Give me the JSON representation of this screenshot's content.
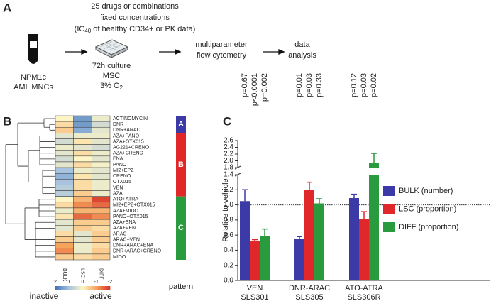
{
  "panel_a": {
    "label": "A",
    "heading": [
      "25 drugs or combinations",
      "fixed concentrations"
    ],
    "heading_line3": {
      "before": "(IC",
      "sub": "40",
      "after": " of healthy CD34+ or PK data)"
    },
    "sample": [
      "NPM1c",
      "AML MNCs"
    ],
    "culture": [
      "72h culture",
      "MSC"
    ],
    "oxygen": {
      "before": "3% O",
      "sub": "2"
    },
    "flow": [
      "multiparameter",
      "flow cytometry"
    ],
    "analysis": [
      "data",
      "analysis"
    ]
  },
  "chart_data": [
    {
      "type": "heatmap",
      "panel_label": "B",
      "rows": [
        "ACTINOMYCIN",
        "DNR",
        "DNR+ARAC",
        "AZA+PANO",
        "AZA+OTX015",
        "AG221+CRENO",
        "AZA+CRENO",
        "ENA",
        "PANO",
        "MI2+EPZ",
        "CRENO",
        "OTX015",
        "VEN",
        "AZA",
        "ATO+ATRA",
        "MI2+EPZ+OTX015",
        "AZA+MIDO",
        "PANO+OTX015",
        "AZA+ENA",
        "AZA+VEN",
        "ARAC",
        "ARAC+VEN",
        "DNR+ARAC+ENA",
        "DNR+ARAC+CRENO",
        "MIDO"
      ],
      "columns": [
        "BULK",
        "LSC",
        "DIFF"
      ],
      "values": [
        [
          0,
          1.5,
          0.2
        ],
        [
          -0.3,
          1.5,
          0.5
        ],
        [
          -0.5,
          1.3,
          0.3
        ],
        [
          0.3,
          0.2,
          0.2
        ],
        [
          0.5,
          -0.2,
          0.3
        ],
        [
          0.2,
          0.3,
          0.5
        ],
        [
          0.3,
          -0.3,
          0.2
        ],
        [
          0.5,
          0,
          0.3
        ],
        [
          0.3,
          -0.3,
          0.1
        ],
        [
          1,
          0.2,
          0.3
        ],
        [
          1.2,
          -0.2,
          0.3
        ],
        [
          1,
          -0.3,
          0.2
        ],
        [
          0.8,
          -0.3,
          0.2
        ],
        [
          0.8,
          -0.5,
          0.2
        ],
        [
          0,
          -0.8,
          -1.8
        ],
        [
          -0.3,
          -1.2,
          -1.5
        ],
        [
          0.2,
          -0.8,
          -0.8
        ],
        [
          -0.2,
          -1.5,
          -1.2
        ],
        [
          0.3,
          -0.5,
          -0.5
        ],
        [
          0.3,
          -0.5,
          -0.3
        ],
        [
          -0.3,
          0.3,
          -0.5
        ],
        [
          -0.5,
          0.3,
          -0.5
        ],
        [
          -1,
          0.2,
          -0.3
        ],
        [
          -1.2,
          0.2,
          -0.5
        ],
        [
          -0.5,
          -0.3,
          -0.5
        ]
      ],
      "clim": [
        2,
        -2
      ],
      "cticks": [
        2,
        1,
        0,
        -1,
        -2
      ],
      "colors": [
        "#3f74b6",
        "#a7c3e0",
        "#fdf5c4",
        "#f6a35c",
        "#d73027"
      ],
      "colorbar_labels": [
        "inactive",
        "active"
      ],
      "pattern": [
        "A",
        "A",
        "A",
        "B",
        "B",
        "B",
        "B",
        "B",
        "B",
        "B",
        "B",
        "B",
        "B",
        "B",
        "C",
        "C",
        "C",
        "C",
        "C",
        "C",
        "C",
        "C",
        "C",
        "C",
        "C"
      ],
      "pattern_colors": {
        "A": "#3b3aa6",
        "B": "#e0282a",
        "C": "#2a9a3e"
      },
      "pattern_title": "pattern"
    },
    {
      "type": "bar",
      "panel_label": "C",
      "categories": [
        [
          "VEN",
          "SLS301"
        ],
        [
          "DNR-ARAC",
          "SLS305"
        ],
        [
          "ATO-ATRA",
          "SLS306R"
        ]
      ],
      "series": [
        {
          "name": "BULK (number)",
          "color": "#3b3aa6",
          "values": [
            1.05,
            0.55,
            1.09
          ],
          "errors": [
            0.15,
            0.03,
            0.05
          ],
          "annotations": [
            "p=0.67",
            "p=0.01",
            "p=0.12"
          ]
        },
        {
          "name": "LSC (proportion)",
          "color": "#e0282a",
          "values": [
            0.52,
            1.2,
            0.81
          ],
          "errors": [
            0.02,
            0.1,
            0.1
          ],
          "annotations": [
            "p<0.0001",
            "p=0.03",
            "p=0.03"
          ]
        },
        {
          "name": "DIFF (proportion)",
          "color": "#2a9a3e",
          "values": [
            0.59,
            1.02,
            1.93
          ],
          "errors": [
            0.09,
            0.06,
            0.29
          ],
          "annotations": [
            "p=0.002",
            "p=0.33",
            "p=0.02"
          ]
        }
      ],
      "ylabel": "Relative to vehicle",
      "ylim": [
        0,
        2.6
      ],
      "ybreak": [
        1.4,
        1.8
      ],
      "yticks": [
        {
          "value": 0,
          "label": "0.0"
        },
        0.2,
        0.4,
        0.6,
        0.8,
        {
          "value": 1,
          "label": "1.0"
        },
        1.2,
        1.4,
        1.8,
        {
          "value": 2,
          "label": "2.0"
        },
        2.2,
        2.4,
        2.6
      ],
      "hline": 1
    }
  ]
}
